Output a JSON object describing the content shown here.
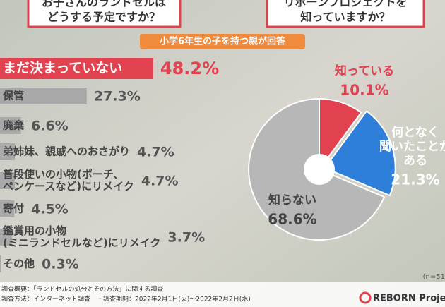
{
  "header": {
    "left_question": [
      "お子さんのランドセルは",
      "どうする予定ですか？"
    ],
    "right_question": [
      "リボーンプロジェクトを",
      "知っていますか？"
    ],
    "banner": "小学6年生の子を持つ親が回答"
  },
  "chart_data": [
    {
      "type": "bar",
      "orientation": "horizontal",
      "categories": [
        [
          "まだ決まっていない"
        ],
        [
          "保管"
        ],
        [
          "廃棄"
        ],
        [
          "弟姉妹、親戚へのおさがり"
        ],
        [
          "普段使いの小物(ポーチ、",
          "ペンケースなど)にリメイク"
        ],
        [
          "寄付"
        ],
        [
          "鑑賞用の小物",
          "(ミニランドセルなど)にリメイク"
        ],
        [
          "その他"
        ]
      ],
      "values": [
        48.2,
        27.3,
        6.6,
        4.7,
        4.7,
        4.5,
        3.7,
        0.3
      ],
      "value_labels": [
        "48.2%",
        "27.3%",
        "6.6%",
        "4.7%",
        "4.7%",
        "4.5%",
        "3.7%",
        "0.3%"
      ],
      "colors": [
        "#e2414f",
        "#a9a9a9",
        "#a9a9a9",
        "#a9a9a9",
        "#a9a9a9",
        "#a9a9a9",
        "#a9a9a9",
        "#a9a9a9"
      ]
    },
    {
      "type": "pie",
      "categories": [
        [
          "知っている"
        ],
        [
          "何となく",
          "聞いたことが",
          "ある"
        ],
        [
          "知らない"
        ]
      ],
      "values": [
        10.1,
        21.3,
        68.6
      ],
      "value_labels": [
        "10.1%",
        "21.3%",
        "68.6%"
      ],
      "colors": [
        "#e2414f",
        "#2e7fd9",
        "#b7b7b7"
      ],
      "note": "(n=51"
    }
  ],
  "footer": {
    "lines": [
      "調査概要：「ランドセルの処分とその方法」に関する調査",
      "調査方法：インターネット調査　・調査期間：2022年2月1日(火)〜2022年2月2日(水)"
    ],
    "brand": "REBORN Proje"
  }
}
